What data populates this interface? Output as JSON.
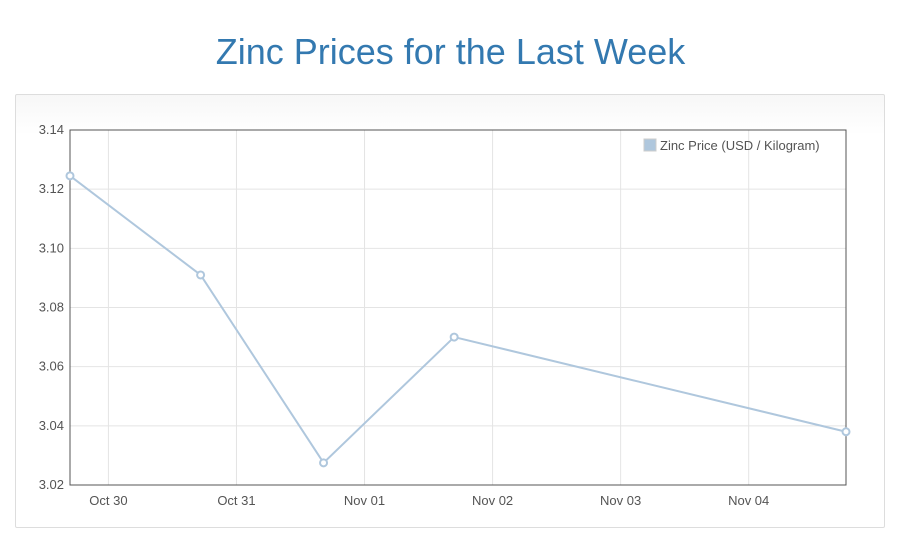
{
  "page": {
    "title": "Zinc Prices for the Last Week"
  },
  "chart_data": {
    "type": "line",
    "title": "Zinc Prices for the Last Week",
    "xlabel": "",
    "ylabel": "",
    "x_ticks": [
      "Oct 30",
      "Oct 31",
      "Nov 01",
      "Nov 02",
      "Nov 03",
      "Nov 04"
    ],
    "x_tick_values": [
      0,
      1,
      2,
      3,
      4,
      5
    ],
    "xlim": [
      -0.3,
      5.76
    ],
    "ylim": [
      3.02,
      3.14
    ],
    "y_ticks": [
      3.02,
      3.04,
      3.06,
      3.08,
      3.1,
      3.12,
      3.14
    ],
    "y_tick_labels": [
      "3.02",
      "3.04",
      "3.06",
      "3.08",
      "3.10",
      "3.12",
      "3.14"
    ],
    "grid": true,
    "legend": {
      "placement": "top-right"
    },
    "series": [
      {
        "name": "Zinc Price (USD / Kilogram)",
        "color": "#afc7dd",
        "x": [
          -0.3,
          0.72,
          1.68,
          2.7,
          5.76
        ],
        "values": [
          3.1245,
          3.091,
          3.0275,
          3.07,
          3.038
        ]
      }
    ]
  }
}
